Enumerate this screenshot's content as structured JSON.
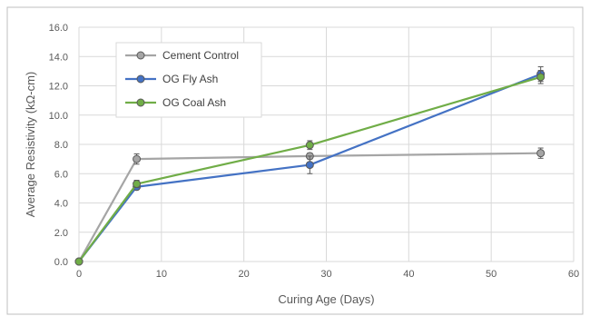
{
  "chart_data": {
    "type": "line",
    "title": "",
    "xlabel": "Curing Age (Days)",
    "ylabel": "Average Resistivity (kΩ-cm)",
    "xlim": [
      0,
      60
    ],
    "ylim": [
      0,
      16
    ],
    "x_ticks": [
      "0",
      "10",
      "20",
      "30",
      "40",
      "50",
      "60"
    ],
    "y_ticks": [
      "0.0",
      "2.0",
      "4.0",
      "6.0",
      "8.0",
      "10.0",
      "12.0",
      "14.0",
      "16.0"
    ],
    "grid": true,
    "legend_position": "top-left",
    "x": [
      0,
      7,
      28,
      56
    ],
    "series": [
      {
        "name": "Cement Control",
        "color": "#a5a5a5",
        "values": [
          0,
          7.0,
          7.2,
          7.4
        ],
        "errors": [
          0,
          0.35,
          0.2,
          0.35
        ]
      },
      {
        "name": "OG Fly Ash",
        "color": "#4472c4",
        "values": [
          0,
          5.1,
          6.6,
          12.8
        ],
        "errors": [
          0,
          0.15,
          0.6,
          0.5
        ]
      },
      {
        "name": "OG Coal Ash",
        "color": "#70ad47",
        "values": [
          0,
          5.3,
          7.95,
          12.6
        ],
        "errors": [
          0,
          0.25,
          0.3,
          0.45
        ]
      }
    ]
  }
}
